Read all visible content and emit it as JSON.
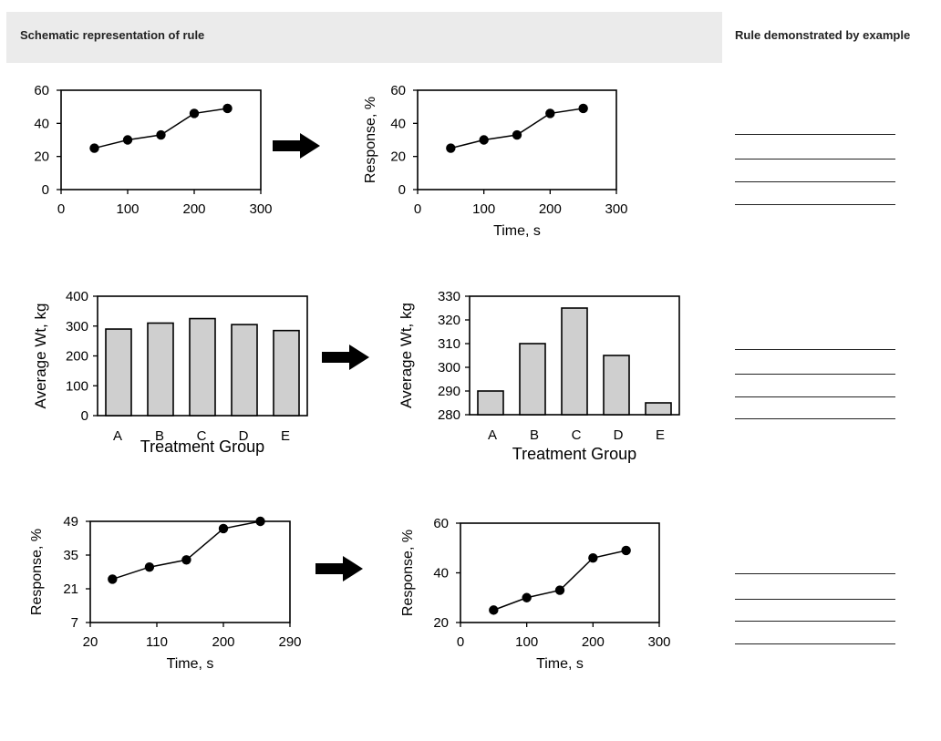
{
  "header": {
    "left_title": "Schematic representation of rule",
    "right_title": "Rule demonstrated by example"
  },
  "answer_lines_per_row": 4,
  "chart_data": [
    {
      "id": "r1_before",
      "type": "line",
      "x": [
        50,
        100,
        150,
        200,
        250
      ],
      "y": [
        25,
        30,
        33,
        46,
        49
      ],
      "xlim": [
        0,
        300
      ],
      "ylim": [
        0,
        60
      ],
      "xticks": [
        0,
        100,
        200,
        300
      ],
      "yticks": [
        0,
        20,
        40,
        60
      ],
      "xlabel": "",
      "ylabel": "",
      "title": ""
    },
    {
      "id": "r1_after",
      "type": "line",
      "x": [
        50,
        100,
        150,
        200,
        250
      ],
      "y": [
        25,
        30,
        33,
        46,
        49
      ],
      "xlim": [
        0,
        300
      ],
      "ylim": [
        0,
        60
      ],
      "xticks": [
        0,
        100,
        200,
        300
      ],
      "yticks": [
        0,
        20,
        40,
        60
      ],
      "xlabel": "Time, s",
      "ylabel": "Response, %",
      "title": ""
    },
    {
      "id": "r2_before",
      "type": "bar",
      "categories": [
        "A",
        "B",
        "C",
        "D",
        "E"
      ],
      "values": [
        290,
        310,
        325,
        305,
        285
      ],
      "ylim": [
        0,
        400
      ],
      "yticks": [
        0,
        100,
        200,
        300,
        400
      ],
      "xlabel": "Treatment Group",
      "ylabel": "Average Wt, kg",
      "title": ""
    },
    {
      "id": "r2_after",
      "type": "bar",
      "categories": [
        "A",
        "B",
        "C",
        "D",
        "E"
      ],
      "values": [
        290,
        310,
        325,
        305,
        285
      ],
      "ylim": [
        280,
        330
      ],
      "yticks": [
        280,
        290,
        300,
        310,
        320,
        330
      ],
      "xlabel": "Treatment Group",
      "ylabel": "Average Wt, kg",
      "title": ""
    },
    {
      "id": "r3_before",
      "type": "line",
      "x": [
        50,
        100,
        150,
        200,
        250
      ],
      "y": [
        25,
        30,
        33,
        46,
        49
      ],
      "xlim": [
        20,
        290
      ],
      "ylim": [
        7,
        49
      ],
      "xticks": [
        20,
        110,
        200,
        290
      ],
      "yticks": [
        7,
        21,
        35,
        49
      ],
      "xlabel": "Time, s",
      "ylabel": "Response, %",
      "title": ""
    },
    {
      "id": "r3_after",
      "type": "line",
      "x": [
        50,
        100,
        150,
        200,
        250
      ],
      "y": [
        25,
        30,
        33,
        46,
        49
      ],
      "xlim": [
        0,
        300
      ],
      "ylim": [
        20,
        60
      ],
      "xticks": [
        0,
        100,
        200,
        300
      ],
      "yticks": [
        20,
        40,
        60
      ],
      "xlabel": "Time, s",
      "ylabel": "Response, %",
      "title": ""
    }
  ]
}
